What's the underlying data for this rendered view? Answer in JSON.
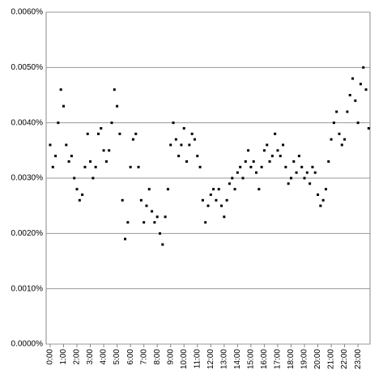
{
  "chart_data": {
    "type": "scatter",
    "color": "#000000",
    "grid": true,
    "xlim": [
      -0.3,
      23.9
    ],
    "ylim": [
      0,
      0.006
    ],
    "yticks": [
      {
        "value": 0,
        "label": "0.0000%"
      },
      {
        "value": 0.001,
        "label": "0.0010%"
      },
      {
        "value": 0.002,
        "label": "0.0020%"
      },
      {
        "value": 0.003,
        "label": "0.0030%"
      },
      {
        "value": 0.004,
        "label": "0.0040%"
      },
      {
        "value": 0.005,
        "label": "0.0050%"
      },
      {
        "value": 0.006,
        "label": "0.0060%"
      }
    ],
    "xticks": [
      {
        "value": 0,
        "label": "0:00"
      },
      {
        "value": 1,
        "label": "1:00"
      },
      {
        "value": 2,
        "label": "2:00"
      },
      {
        "value": 3,
        "label": "3:00"
      },
      {
        "value": 4,
        "label": "4:00"
      },
      {
        "value": 5,
        "label": "5:00"
      },
      {
        "value": 6,
        "label": "6:00"
      },
      {
        "value": 7,
        "label": "7:00"
      },
      {
        "value": 8,
        "label": "8:00"
      },
      {
        "value": 9,
        "label": "9:00"
      },
      {
        "value": 10,
        "label": "10:00"
      },
      {
        "value": 11,
        "label": "11:00"
      },
      {
        "value": 12,
        "label": "12:00"
      },
      {
        "value": 13,
        "label": "13:00"
      },
      {
        "value": 14,
        "label": "14:00"
      },
      {
        "value": 15,
        "label": "15:00"
      },
      {
        "value": 16,
        "label": "16:00"
      },
      {
        "value": 17,
        "label": "17:00"
      },
      {
        "value": 18,
        "label": "18:00"
      },
      {
        "value": 19,
        "label": "19:00"
      },
      {
        "value": 20,
        "label": "20:00"
      },
      {
        "value": 21,
        "label": "21:00"
      },
      {
        "value": 22,
        "label": "22:00"
      },
      {
        "value": 23,
        "label": "23:00"
      }
    ],
    "x": [
      0.0,
      0.2,
      0.4,
      0.6,
      0.8,
      1.0,
      1.2,
      1.4,
      1.6,
      1.8,
      2.0,
      2.2,
      2.4,
      2.6,
      2.8,
      3.0,
      3.2,
      3.4,
      3.6,
      3.8,
      4.0,
      4.2,
      4.4,
      4.6,
      4.8,
      5.0,
      5.2,
      5.4,
      5.6,
      5.8,
      6.0,
      6.2,
      6.4,
      6.6,
      6.8,
      7.0,
      7.2,
      7.4,
      7.6,
      7.8,
      8.0,
      8.2,
      8.4,
      8.6,
      8.8,
      9.0,
      9.2,
      9.4,
      9.6,
      9.8,
      10.0,
      10.2,
      10.4,
      10.6,
      10.8,
      11.0,
      11.2,
      11.4,
      11.6,
      11.8,
      12.0,
      12.2,
      12.4,
      12.6,
      12.8,
      13.0,
      13.2,
      13.4,
      13.6,
      13.8,
      14.0,
      14.2,
      14.4,
      14.6,
      14.8,
      15.0,
      15.2,
      15.4,
      15.6,
      15.8,
      16.0,
      16.2,
      16.4,
      16.6,
      16.8,
      17.0,
      17.2,
      17.4,
      17.6,
      17.8,
      18.0,
      18.2,
      18.4,
      18.6,
      18.8,
      19.0,
      19.2,
      19.4,
      19.6,
      19.8,
      20.0,
      20.2,
      20.4,
      20.6,
      20.8,
      21.0,
      21.2,
      21.4,
      21.6,
      21.8,
      22.0,
      22.2,
      22.4,
      22.6,
      22.8,
      23.0,
      23.2,
      23.4,
      23.6,
      23.8
    ],
    "values": [
      0.0036,
      0.0032,
      0.0034,
      0.004,
      0.0046,
      0.0043,
      0.0036,
      0.0033,
      0.0034,
      0.003,
      0.0028,
      0.0026,
      0.0027,
      0.0032,
      0.0038,
      0.0033,
      0.003,
      0.0032,
      0.0038,
      0.0039,
      0.0035,
      0.0033,
      0.0035,
      0.004,
      0.0046,
      0.0043,
      0.0038,
      0.0026,
      0.0019,
      0.0022,
      0.0032,
      0.0037,
      0.0038,
      0.0032,
      0.0026,
      0.0022,
      0.0025,
      0.0028,
      0.0024,
      0.0022,
      0.0023,
      0.002,
      0.0018,
      0.0023,
      0.0028,
      0.0036,
      0.004,
      0.0037,
      0.0034,
      0.0036,
      0.0039,
      0.0033,
      0.0036,
      0.0038,
      0.0037,
      0.0034,
      0.0032,
      0.0026,
      0.0022,
      0.0025,
      0.0027,
      0.0028,
      0.0026,
      0.0028,
      0.0025,
      0.0023,
      0.0026,
      0.0029,
      0.003,
      0.0028,
      0.0031,
      0.0032,
      0.003,
      0.0033,
      0.0035,
      0.0032,
      0.0033,
      0.0031,
      0.0028,
      0.0032,
      0.0035,
      0.0036,
      0.0033,
      0.0034,
      0.0038,
      0.0035,
      0.0034,
      0.0036,
      0.0032,
      0.0029,
      0.003,
      0.0033,
      0.0031,
      0.0034,
      0.0032,
      0.003,
      0.0031,
      0.0029,
      0.0032,
      0.0031,
      0.0027,
      0.0025,
      0.0026,
      0.0028,
      0.0033,
      0.0037,
      0.004,
      0.0042,
      0.0038,
      0.0036,
      0.0037,
      0.0042,
      0.0045,
      0.0048,
      0.0044,
      0.004,
      0.0047,
      0.005,
      0.0046,
      0.0039
    ]
  }
}
